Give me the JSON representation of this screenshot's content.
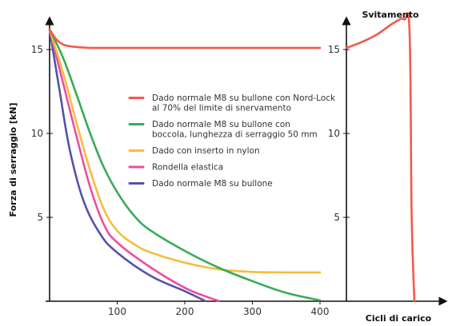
{
  "chart_data": {
    "type": "line",
    "ylabel": "Forza di serraggio  [kN]",
    "xlabel": "Cicli di carico",
    "right_title": "Svitamento",
    "xlim": [
      0,
      400
    ],
    "ylim": [
      0,
      17
    ],
    "x_ticks": [
      100,
      200,
      300,
      400
    ],
    "y_ticks": [
      5,
      10,
      15
    ],
    "series": [
      {
        "name": "Dado normale M8 su bullone con Nord-Lock al 70% del limite di snervamento",
        "legend_lines": [
          "Dado normale M8 su bullone con Nord-Lock",
          "al 70% del limite di snervamento"
        ],
        "color": "#f25a4c",
        "x": [
          0,
          10,
          20,
          30,
          40,
          60,
          100,
          200,
          300,
          400
        ],
        "y": [
          16.2,
          15.6,
          15.3,
          15.2,
          15.15,
          15.1,
          15.1,
          15.1,
          15.1,
          15.1
        ]
      },
      {
        "name": "Dado normale M8 su bullone con boccola, lunghezza di serraggio 50 mm",
        "legend_lines": [
          "Dado normale M8 su bullone con",
          "boccola, lunghezza di serraggio 50 mm"
        ],
        "color": "#3aaa5a",
        "x": [
          0,
          20,
          40,
          60,
          80,
          100,
          125,
          150,
          200,
          250,
          300,
          350,
          400
        ],
        "y": [
          16.2,
          14.5,
          12.3,
          10.0,
          8.0,
          6.5,
          5.1,
          4.2,
          3.0,
          2.0,
          1.2,
          0.5,
          0.05
        ]
      },
      {
        "name": "Dado con inserto in nylon",
        "legend_lines": [
          "Dado con inserto in nylon"
        ],
        "color": "#f7bd3b",
        "x": [
          0,
          20,
          40,
          60,
          80,
          100,
          125,
          150,
          200,
          250,
          300,
          350,
          400
        ],
        "y": [
          16.2,
          13.6,
          10.6,
          7.8,
          5.5,
          4.2,
          3.4,
          2.9,
          2.3,
          1.9,
          1.75,
          1.72,
          1.72
        ]
      },
      {
        "name": "Rondella elastica",
        "legend_lines": [
          "Rondella elastica"
        ],
        "color": "#ec4ea0",
        "x": [
          0,
          20,
          40,
          60,
          80,
          100,
          150,
          200,
          230,
          250
        ],
        "y": [
          16.2,
          13.0,
          9.8,
          6.8,
          4.6,
          3.5,
          2.0,
          0.8,
          0.3,
          0.02
        ]
      },
      {
        "name": "Dado normale M8 su bullone",
        "legend_lines": [
          "Dado normale M8 su bullone"
        ],
        "color": "#5552a8",
        "x": [
          0,
          15,
          30,
          50,
          75,
          100,
          150,
          200,
          230
        ],
        "y": [
          16.2,
          12.5,
          9.0,
          6.0,
          4.0,
          2.9,
          1.5,
          0.6,
          0.02
        ]
      }
    ],
    "unloosening": {
      "color": "#f25a4c",
      "y_ticks": [
        5,
        10,
        15
      ],
      "x": [
        0,
        0.2,
        0.45,
        0.7,
        0.85,
        0.93,
        0.96,
        1.0
      ],
      "y": [
        15.1,
        15.4,
        15.9,
        16.6,
        16.8,
        16.0,
        5.0,
        0
      ]
    }
  }
}
